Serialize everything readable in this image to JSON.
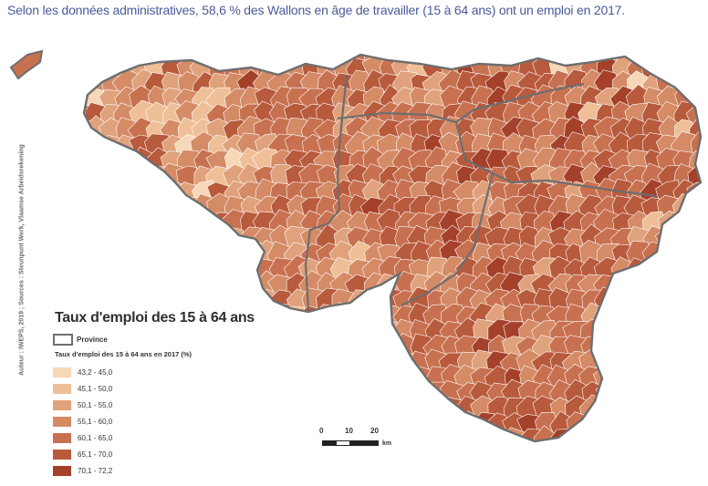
{
  "caption": "Selon les données administratives, 58,6 % des Wallons en âge de travailler (15 à 64 ans) ont un emploi en 2017.",
  "credit": "Auteur : IWEPS, 2019 ; Sources : Steunpunt Werk, Vlaamse Arbeidsrekening",
  "legend": {
    "title": "Taux d'emploi des 15 à 64 ans",
    "province_label": "Province",
    "subtitle": "Taux d'emploi des 15 à 64 ans en 2017 (%)",
    "classes": [
      {
        "label": "43,2 - 45,0",
        "color": "#f6d7b8"
      },
      {
        "label": "45,1 - 50,0",
        "color": "#efbf98"
      },
      {
        "label": "50,1 - 55,0",
        "color": "#e0a27c"
      },
      {
        "label": "55,1 - 60,0",
        "color": "#d48b66"
      },
      {
        "label": "60,1 - 65,0",
        "color": "#c87150"
      },
      {
        "label": "65,1 - 70,0",
        "color": "#b85a3c"
      },
      {
        "label": "70,1 - 72,2",
        "color": "#a5402a"
      }
    ]
  },
  "scale": {
    "ticks": [
      "0",
      "10",
      "20"
    ],
    "unit": "km"
  },
  "colors": {
    "border": "#6e6e6e",
    "caption": "#4a5a9a"
  }
}
